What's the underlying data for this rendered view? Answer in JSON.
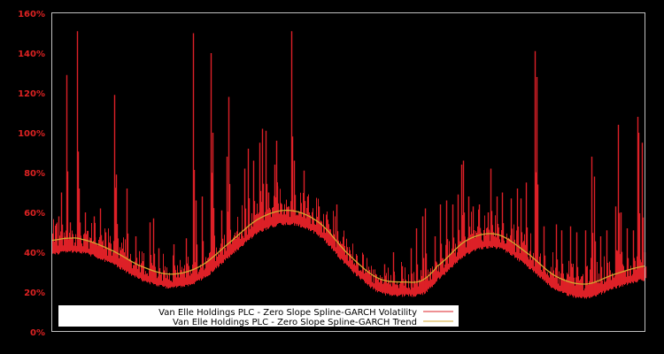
{
  "colors": {
    "background": "#000000",
    "frame": "#c0c0c0",
    "tick_label": "#dd2222",
    "volatility": "#dd2027",
    "trend": "#d4a830",
    "legend_bg": "#ffffff",
    "legend_text": "#000000"
  },
  "chart_data": {
    "type": "line",
    "title": "",
    "xlabel": "",
    "ylabel": "",
    "ylim": [
      0,
      160
    ],
    "y_ticks": [
      0,
      20,
      40,
      60,
      80,
      100,
      120,
      140,
      160
    ],
    "y_tick_labels": [
      "0%",
      "20%",
      "40%",
      "60%",
      "80%",
      "100%",
      "120%",
      "140%",
      "160%"
    ],
    "grid": false,
    "legend_position": "lower left",
    "legend": [
      "Van Elle Holdings PLC - Zero Slope Spline-GARCH Volatility",
      "Van Elle Holdings PLC - Zero Slope Spline-GARCH Trend"
    ],
    "x_range": [
      0,
      100
    ],
    "series": [
      {
        "name": "Van Elle Holdings PLC - Zero Slope Spline-GARCH Trend",
        "x": [
          0,
          2.5,
          5,
          10,
          15,
          20,
          25,
          30,
          35,
          40,
          45,
          50,
          55,
          60,
          62.5,
          65,
          70,
          75,
          80,
          85,
          90,
          95,
          100
        ],
        "values": [
          46,
          47,
          46.5,
          41,
          33,
          29,
          33,
          45,
          57,
          61,
          55,
          39,
          27,
          25,
          26,
          33,
          46,
          49,
          40,
          28,
          24,
          29,
          33
        ]
      },
      {
        "name": "Van Elle Holdings PLC - Zero Slope Spline-GARCH Volatility",
        "base_offset_below_trend": 6,
        "spikes": [
          {
            "x": 1.0,
            "value": 58
          },
          {
            "x": 1.5,
            "value": 70
          },
          {
            "x": 2.4,
            "value": 129
          },
          {
            "x": 3.0,
            "value": 55
          },
          {
            "x": 4.2,
            "value": 151
          },
          {
            "x": 4.5,
            "value": 72
          },
          {
            "x": 5.5,
            "value": 60
          },
          {
            "x": 7.0,
            "value": 58
          },
          {
            "x": 8.0,
            "value": 62
          },
          {
            "x": 9.0,
            "value": 50
          },
          {
            "x": 10.5,
            "value": 119
          },
          {
            "x": 10.8,
            "value": 79
          },
          {
            "x": 12.5,
            "value": 72
          },
          {
            "x": 14.0,
            "value": 48
          },
          {
            "x": 16.5,
            "value": 55
          },
          {
            "x": 17.0,
            "value": 57
          },
          {
            "x": 18.0,
            "value": 42
          },
          {
            "x": 20.5,
            "value": 44
          },
          {
            "x": 22.5,
            "value": 47
          },
          {
            "x": 23.7,
            "value": 150
          },
          {
            "x": 24.2,
            "value": 66
          },
          {
            "x": 25.2,
            "value": 68
          },
          {
            "x": 26.8,
            "value": 140
          },
          {
            "x": 27.0,
            "value": 100
          },
          {
            "x": 28.5,
            "value": 61
          },
          {
            "x": 29.5,
            "value": 88
          },
          {
            "x": 29.8,
            "value": 118
          },
          {
            "x": 32.5,
            "value": 82
          },
          {
            "x": 33.0,
            "value": 92
          },
          {
            "x": 34.0,
            "value": 86
          },
          {
            "x": 35.0,
            "value": 95
          },
          {
            "x": 35.5,
            "value": 102
          },
          {
            "x": 36.0,
            "value": 101
          },
          {
            "x": 36.5,
            "value": 70
          },
          {
            "x": 37.5,
            "value": 84
          },
          {
            "x": 37.8,
            "value": 96
          },
          {
            "x": 40.4,
            "value": 151
          },
          {
            "x": 40.8,
            "value": 86
          },
          {
            "x": 42.5,
            "value": 81
          },
          {
            "x": 43.0,
            "value": 68
          },
          {
            "x": 45.0,
            "value": 63
          },
          {
            "x": 46.5,
            "value": 54
          },
          {
            "x": 47.5,
            "value": 49
          },
          {
            "x": 48.0,
            "value": 64
          },
          {
            "x": 49.0,
            "value": 41
          },
          {
            "x": 50.5,
            "value": 36
          },
          {
            "x": 52.0,
            "value": 31
          },
          {
            "x": 53.5,
            "value": 31
          },
          {
            "x": 54.5,
            "value": 29
          },
          {
            "x": 56.0,
            "value": 34
          },
          {
            "x": 57.5,
            "value": 40
          },
          {
            "x": 59.0,
            "value": 33
          },
          {
            "x": 60.5,
            "value": 42
          },
          {
            "x": 61.5,
            "value": 52
          },
          {
            "x": 62.5,
            "value": 58
          },
          {
            "x": 63.0,
            "value": 62
          },
          {
            "x": 64.5,
            "value": 48
          },
          {
            "x": 65.5,
            "value": 64
          },
          {
            "x": 66.5,
            "value": 66
          },
          {
            "x": 67.5,
            "value": 64
          },
          {
            "x": 68.5,
            "value": 69
          },
          {
            "x": 69.0,
            "value": 84
          },
          {
            "x": 69.3,
            "value": 86
          },
          {
            "x": 70.3,
            "value": 68
          },
          {
            "x": 71.0,
            "value": 63
          },
          {
            "x": 72.0,
            "value": 64
          },
          {
            "x": 73.5,
            "value": 60
          },
          {
            "x": 74.0,
            "value": 82
          },
          {
            "x": 75.0,
            "value": 68
          },
          {
            "x": 76.0,
            "value": 70
          },
          {
            "x": 77.5,
            "value": 67
          },
          {
            "x": 78.5,
            "value": 72
          },
          {
            "x": 79.0,
            "value": 67
          },
          {
            "x": 80.0,
            "value": 75
          },
          {
            "x": 81.5,
            "value": 141
          },
          {
            "x": 81.7,
            "value": 128
          },
          {
            "x": 83.0,
            "value": 53
          },
          {
            "x": 85.0,
            "value": 54
          },
          {
            "x": 86.0,
            "value": 51
          },
          {
            "x": 87.5,
            "value": 53
          },
          {
            "x": 88.5,
            "value": 50
          },
          {
            "x": 90.0,
            "value": 51
          },
          {
            "x": 91.0,
            "value": 88
          },
          {
            "x": 91.5,
            "value": 78
          },
          {
            "x": 92.5,
            "value": 48
          },
          {
            "x": 93.5,
            "value": 51
          },
          {
            "x": 95.0,
            "value": 63
          },
          {
            "x": 95.5,
            "value": 104
          },
          {
            "x": 96.0,
            "value": 60
          },
          {
            "x": 97.0,
            "value": 52
          },
          {
            "x": 98.0,
            "value": 51
          },
          {
            "x": 98.8,
            "value": 108
          },
          {
            "x": 99.0,
            "value": 100
          },
          {
            "x": 99.5,
            "value": 95
          },
          {
            "x": 100.0,
            "value": 40
          }
        ]
      }
    ]
  },
  "legend": {
    "volatility_label": "Van Elle Holdings PLC - Zero Slope Spline-GARCH Volatility",
    "trend_label": "Van Elle Holdings PLC - Zero Slope Spline-GARCH Trend"
  }
}
